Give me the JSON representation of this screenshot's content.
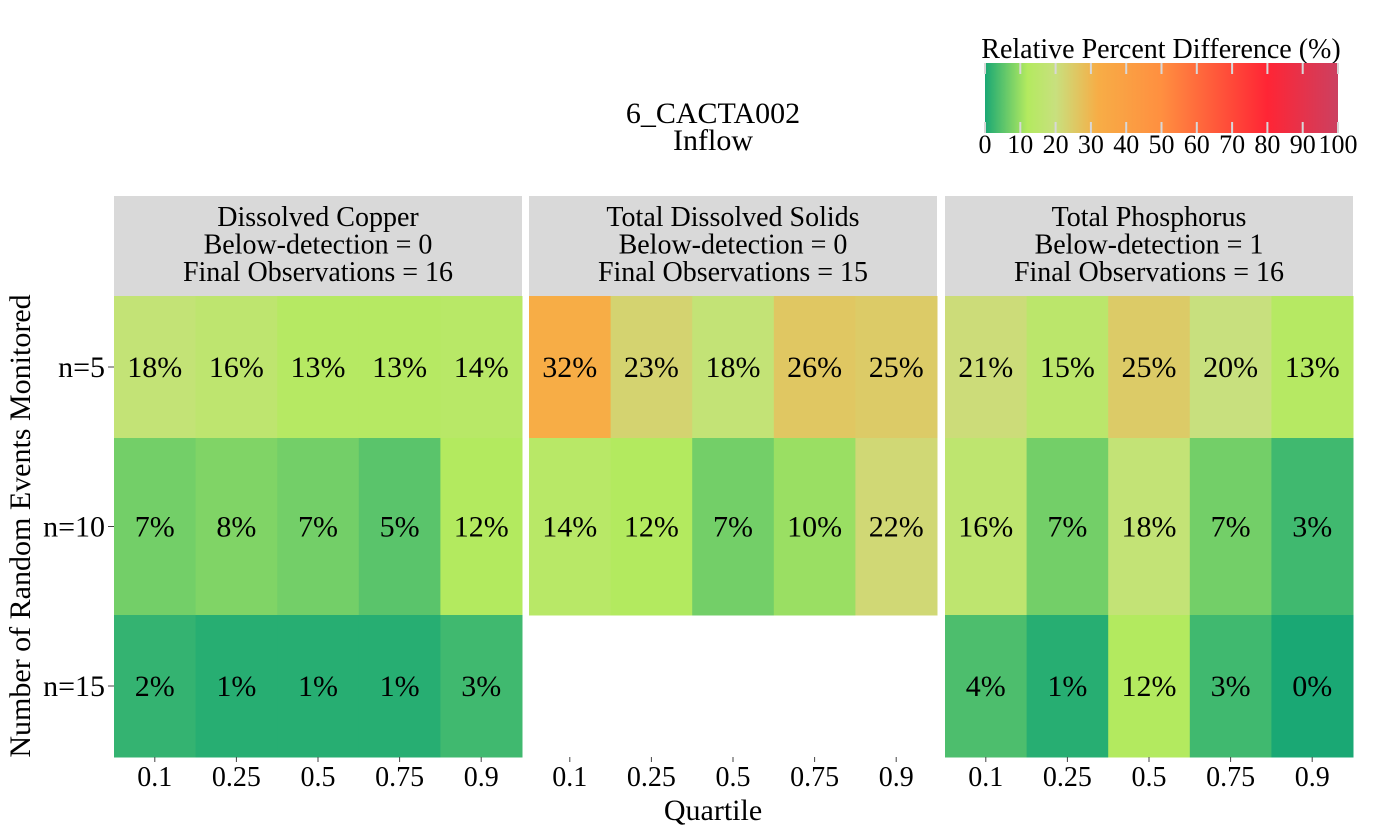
{
  "chart_data": {
    "type": "heatmap",
    "title": "6_CACTA002",
    "subtitle": "Inflow",
    "xlabel": "Quartile",
    "ylabel": "Number of Random Events Monitored",
    "x_ticks": [
      "0.1",
      "0.25",
      "0.5",
      "0.75",
      "0.9"
    ],
    "y_ticks": [
      "n=5",
      "n=10",
      "n=15"
    ],
    "colorbar": {
      "label": "Relative Percent Difference (%)",
      "range": [
        0,
        100
      ],
      "ticks": [
        "0",
        "10",
        "20",
        "30",
        "40",
        "50",
        "60",
        "70",
        "80",
        "90",
        "100"
      ],
      "stops": [
        {
          "v": 0,
          "color": "#1aa874"
        },
        {
          "v": 12,
          "color": "#b3ea5f"
        },
        {
          "v": 20,
          "color": "#c8e07e"
        },
        {
          "v": 32,
          "color": "#f7ad46"
        },
        {
          "v": 50,
          "color": "#ff8f40"
        },
        {
          "v": 80,
          "color": "#ff2535"
        },
        {
          "v": 100,
          "color": "#cc4060"
        }
      ]
    },
    "panels": [
      {
        "header": [
          "Dissolved Copper",
          "Below-detection = 0",
          "Final Observations = 16"
        ],
        "rows": [
          {
            "n": "n=5",
            "values": [
              18,
              16,
              13,
              13,
              14
            ],
            "labels": [
              "18%",
              "16%",
              "13%",
              "13%",
              "14%"
            ]
          },
          {
            "n": "n=10",
            "values": [
              7,
              8,
              7,
              5,
              12
            ],
            "labels": [
              "7%",
              "8%",
              "7%",
              "5%",
              "12%"
            ]
          },
          {
            "n": "n=15",
            "values": [
              2,
              1,
              1,
              1,
              3
            ],
            "labels": [
              "2%",
              "1%",
              "1%",
              "1%",
              "3%"
            ]
          }
        ]
      },
      {
        "header": [
          "Total Dissolved Solids",
          "Below-detection = 0",
          "Final Observations = 15"
        ],
        "rows": [
          {
            "n": "n=5",
            "values": [
              32,
              23,
              18,
              26,
              25
            ],
            "labels": [
              "32%",
              "23%",
              "18%",
              "26%",
              "25%"
            ]
          },
          {
            "n": "n=10",
            "values": [
              14,
              12,
              7,
              10,
              22
            ],
            "labels": [
              "14%",
              "12%",
              "7%",
              "10%",
              "22%"
            ]
          },
          {
            "n": "n=15",
            "values": null,
            "labels": null
          }
        ]
      },
      {
        "header": [
          "Total Phosphorus",
          "Below-detection = 1",
          "Final Observations = 16"
        ],
        "rows": [
          {
            "n": "n=5",
            "values": [
              21,
              15,
              25,
              20,
              13
            ],
            "labels": [
              "21%",
              "15%",
              "25%",
              "20%",
              "13%"
            ]
          },
          {
            "n": "n=10",
            "values": [
              16,
              7,
              18,
              7,
              3
            ],
            "labels": [
              "16%",
              "7%",
              "18%",
              "7%",
              "3%"
            ]
          },
          {
            "n": "n=15",
            "values": [
              4,
              1,
              12,
              3,
              0
            ],
            "labels": [
              "4%",
              "1%",
              "12%",
              "3%",
              "0%"
            ]
          }
        ]
      }
    ]
  }
}
